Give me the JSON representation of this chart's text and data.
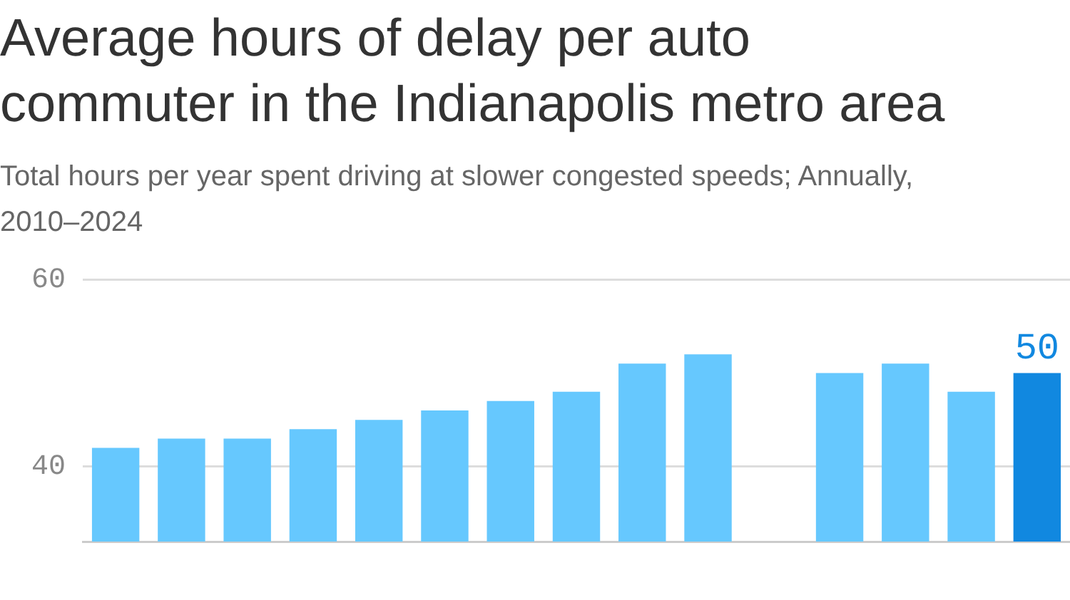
{
  "chart_data": {
    "type": "bar",
    "title": "Average hours of delay per auto commuter in the Indianapolis metro area",
    "subtitle": "Total hours per year spent driving at slower congested speeds; Annually, 2010–2024",
    "categories": [
      null,
      null,
      null,
      null,
      null,
      null,
      null,
      null,
      null,
      null,
      null,
      null,
      null,
      null,
      null
    ],
    "values": [
      42,
      43,
      43,
      44,
      45,
      46,
      47,
      48,
      51,
      52,
      null,
      50,
      51,
      48,
      50
    ],
    "colors": [
      "#66c8fe",
      "#66c8fe",
      "#66c8fe",
      "#66c8fe",
      "#66c8fe",
      "#66c8fe",
      "#66c8fe",
      "#66c8fe",
      "#66c8fe",
      "#66c8fe",
      "#66c8fe",
      "#66c8fe",
      "#66c8fe",
      "#66c8fe",
      "#1188e0"
    ],
    "value_labels": [
      null,
      null,
      null,
      null,
      null,
      null,
      null,
      null,
      null,
      null,
      null,
      null,
      null,
      null,
      "50"
    ],
    "ylim": [
      32,
      60
    ],
    "yticks": [
      40,
      60
    ],
    "grid": "y",
    "tick_labels": "y"
  }
}
